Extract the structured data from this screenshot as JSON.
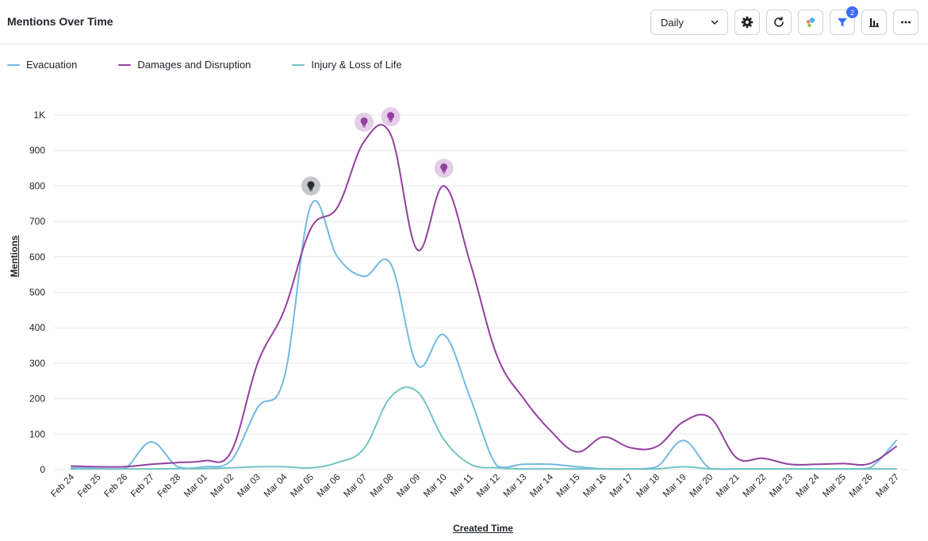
{
  "header": {
    "title": "Mentions Over Time"
  },
  "toolbar": {
    "interval": "Daily",
    "filter_badge": "2",
    "icons": [
      "gear-icon",
      "refresh-icon",
      "color-dots-icon",
      "filter-icon",
      "bar-chart-icon",
      "more-icon"
    ]
  },
  "chart_data": {
    "type": "line",
    "xlabel": "Created Time",
    "ylabel": "Mentions",
    "ylim": [
      0,
      1000
    ],
    "yticks": [
      "0",
      "100",
      "200",
      "300",
      "400",
      "500",
      "600",
      "700",
      "800",
      "900",
      "1K"
    ],
    "grid": true,
    "legend_position": "top-left",
    "categories": [
      "Feb 24",
      "Feb 25",
      "Feb 26",
      "Feb 27",
      "Feb 28",
      "Mar 01",
      "Mar 02",
      "Mar 03",
      "Mar 04",
      "Mar 05",
      "Mar 06",
      "Mar 07",
      "Mar 08",
      "Mar 09",
      "Mar 10",
      "Mar 11",
      "Mar 12",
      "Mar 13",
      "Mar 14",
      "Mar 15",
      "Mar 16",
      "Mar 17",
      "Mar 18",
      "Mar 19",
      "Mar 20",
      "Mar 21",
      "Mar 22",
      "Mar 23",
      "Mar 24",
      "Mar 25",
      "Mar 26",
      "Mar 27"
    ],
    "series": [
      {
        "name": "Evacuation",
        "color": "#72b9e3",
        "values": [
          5,
          3,
          3,
          78,
          8,
          8,
          25,
          175,
          260,
          745,
          600,
          545,
          580,
          295,
          380,
          200,
          10,
          15,
          15,
          8,
          2,
          2,
          8,
          82,
          3,
          2,
          2,
          2,
          2,
          2,
          5,
          82
        ]
      },
      {
        "name": "Damages and Disruption",
        "color": "#93409f",
        "values": [
          10,
          8,
          8,
          15,
          20,
          25,
          50,
          300,
          450,
          680,
          740,
          925,
          945,
          620,
          800,
          580,
          320,
          200,
          110,
          50,
          92,
          62,
          65,
          135,
          147,
          33,
          32,
          15,
          15,
          17,
          17,
          65
        ]
      },
      {
        "name": "Injury & Loss of Life",
        "color": "#74c4c4",
        "values": [
          2,
          2,
          2,
          2,
          3,
          3,
          5,
          8,
          8,
          5,
          20,
          60,
          205,
          220,
          85,
          15,
          5,
          2,
          2,
          2,
          2,
          2,
          2,
          8,
          2,
          2,
          2,
          2,
          2,
          2,
          2,
          2
        ]
      }
    ],
    "annotations": [
      {
        "x": "Mar 05",
        "y": 800,
        "icon": "lightbulb-icon",
        "color": "#2b2d31"
      },
      {
        "x": "Mar 07",
        "y": 980,
        "icon": "lightbulb-icon",
        "color": "#93409f"
      },
      {
        "x": "Mar 08",
        "y": 995,
        "icon": "lightbulb-icon",
        "color": "#93409f"
      },
      {
        "x": "Mar 10",
        "y": 850,
        "icon": "lightbulb-icon",
        "color": "#93409f"
      }
    ]
  }
}
